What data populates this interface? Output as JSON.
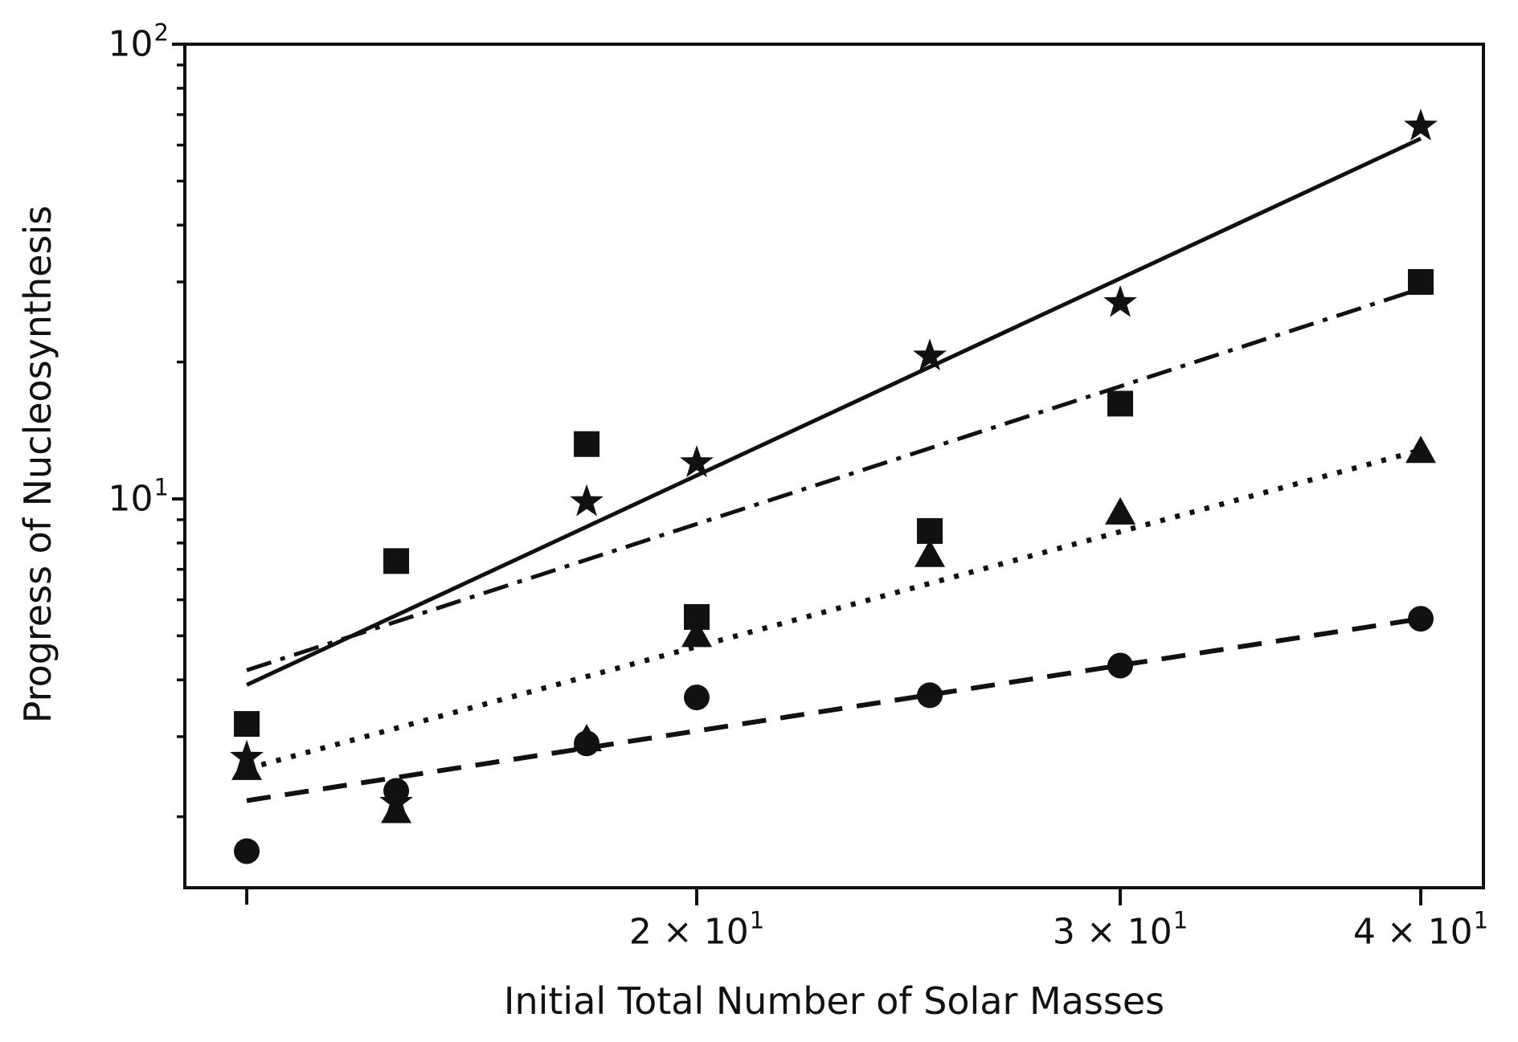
{
  "figure": {
    "background": "#ffffff",
    "ink_color": "#111111"
  },
  "chart_data": {
    "type": "scatter",
    "title": "",
    "xlabel": "Initial Total Number of Solar Masses",
    "ylabel": "Progress of Nucleosynthesis",
    "x_scale": "log",
    "y_scale": "log",
    "xlim": [
      12.25,
      42.5
    ],
    "ylim": [
      1.4,
      100
    ],
    "grid": false,
    "legend": "none",
    "x": [
      13,
      15,
      18,
      20,
      25,
      30,
      40
    ],
    "series": [
      {
        "name": "stars",
        "marker": "star",
        "line_style": "solid",
        "values": [
          2.7,
          2.15,
          9.85,
          12.0,
          20.6,
          27.0,
          66.0
        ],
        "fit_line": {
          "x": [
            13,
            40
          ],
          "y": [
            3.9,
            62.0
          ]
        }
      },
      {
        "name": "squares",
        "marker": "square",
        "line_style": "dashdot",
        "values": [
          3.2,
          7.3,
          13.2,
          5.5,
          8.5,
          16.2,
          30.0
        ],
        "fit_line": {
          "x": [
            13,
            40
          ],
          "y": [
            4.2,
            29.0
          ]
        }
      },
      {
        "name": "triangles",
        "marker": "triangle",
        "line_style": "dotted",
        "values": [
          2.55,
          2.05,
          2.95,
          5.0,
          7.5,
          9.3,
          12.7
        ],
        "fit_line": {
          "x": [
            13,
            40
          ],
          "y": [
            2.55,
            12.8
          ]
        }
      },
      {
        "name": "circles",
        "marker": "circle",
        "line_style": "dashed",
        "values": [
          1.68,
          2.28,
          2.9,
          3.66,
          3.7,
          4.3,
          5.45
        ],
        "fit_line": {
          "x": [
            13,
            40
          ],
          "y": [
            2.17,
            5.45
          ]
        }
      }
    ]
  },
  "axes": {
    "x_tick_labels": [
      {
        "text": "2 × 10",
        "exp": "1",
        "value": 20
      },
      {
        "text": "3 × 10",
        "exp": "1",
        "value": 30
      },
      {
        "text": "4 × 10",
        "exp": "1",
        "value": 40
      }
    ],
    "x_minor_ticks": [
      13
    ],
    "y_tick_labels": [
      {
        "text": "10",
        "exp": "2",
        "value": 100
      },
      {
        "text": "10",
        "exp": "1",
        "value": 10
      }
    ],
    "y_minor_ticks": [
      2,
      3,
      4,
      5,
      6,
      7,
      8,
      9,
      20,
      30,
      40,
      50,
      60,
      70,
      80,
      90
    ]
  }
}
